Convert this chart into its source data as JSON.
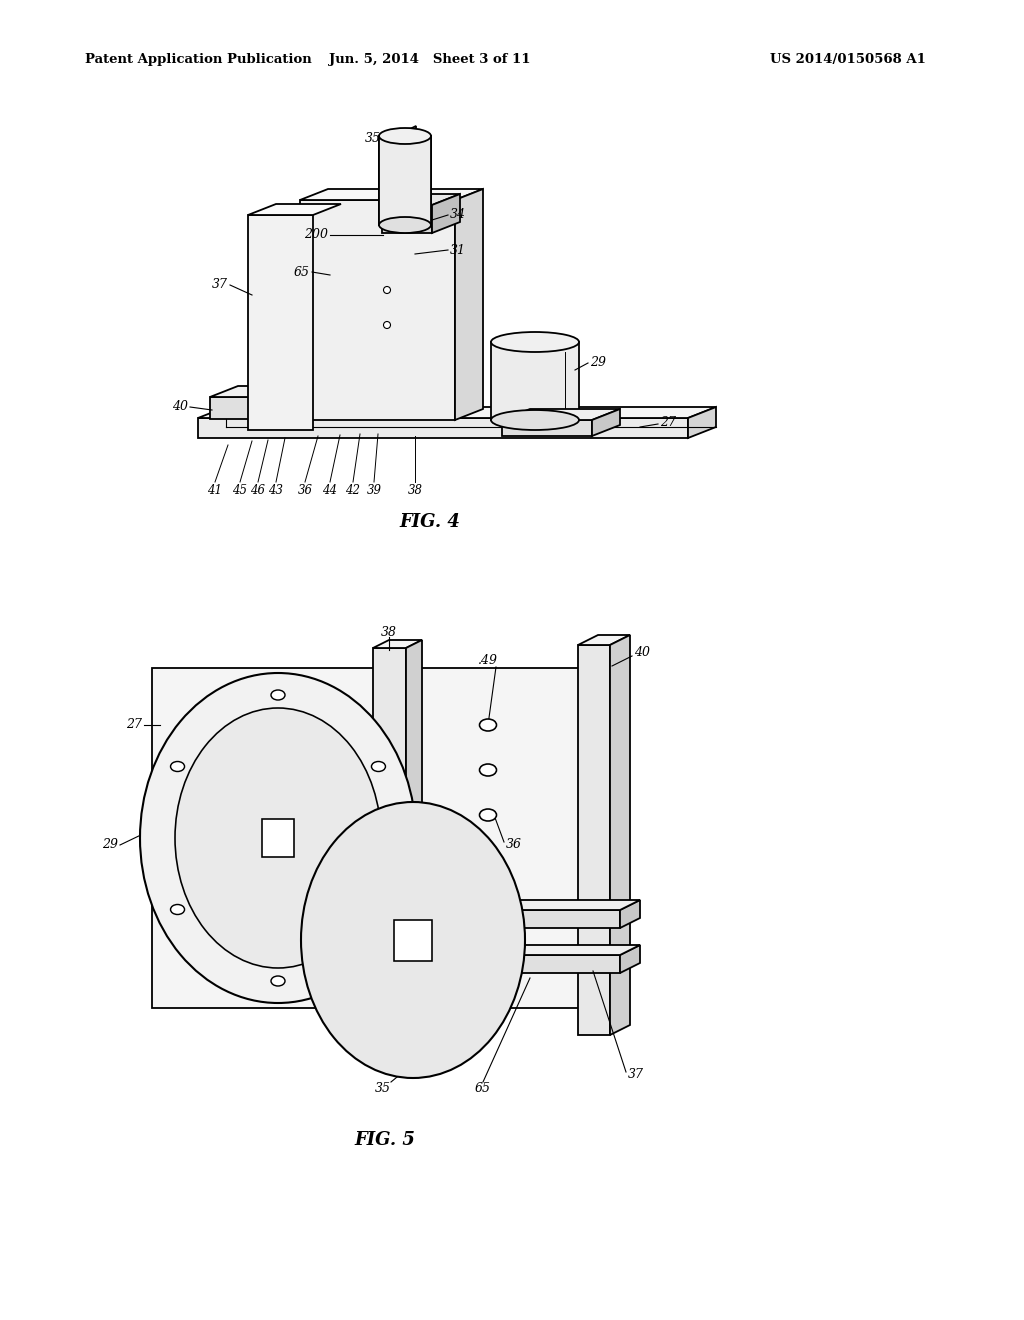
{
  "background_color": "#ffffff",
  "header_left": "Patent Application Publication",
  "header_center": "Jun. 5, 2014   Sheet 3 of 11",
  "header_right": "US 2014/0150568 A1",
  "fig4_caption": "FIG. 4",
  "fig5_caption": "FIG. 5",
  "line_color": "#000000",
  "line_color_light": "#555555"
}
